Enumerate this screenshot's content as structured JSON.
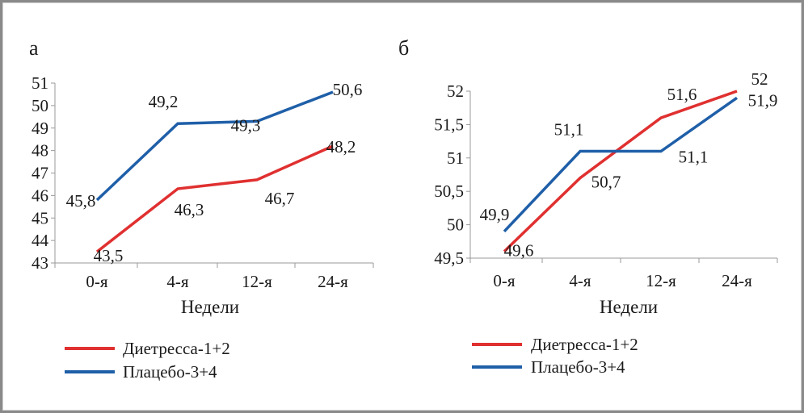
{
  "chart_data": [
    {
      "type": "line",
      "panel_label": "а",
      "xlabel": "Недели",
      "categories": [
        "0-я",
        "4-я",
        "12-я",
        "24-я"
      ],
      "yticks": [
        "43",
        "44",
        "45",
        "46",
        "47",
        "48",
        "49",
        "50",
        "51"
      ],
      "ylim": [
        43,
        51
      ],
      "grid": false,
      "legend_position": "bottom-left",
      "series": [
        {
          "name": "Диетресса-1+2",
          "color": "#e03030",
          "values": [
            43.5,
            46.3,
            46.7,
            48.2
          ],
          "labels": [
            "43,5",
            "46,3",
            "46,7",
            "48,2"
          ]
        },
        {
          "name": "Плацебо-3+4",
          "color": "#1f5fa8",
          "values": [
            45.8,
            49.2,
            49.3,
            50.6
          ],
          "labels": [
            "45,8",
            "49,2",
            "49,3",
            "50,6"
          ]
        }
      ]
    },
    {
      "type": "line",
      "panel_label": "б",
      "xlabel": "Недели",
      "categories": [
        "0-я",
        "4-я",
        "12-я",
        "24-я"
      ],
      "yticks": [
        "49,5",
        "50",
        "50,5",
        "51",
        "51,5",
        "52"
      ],
      "ylim": [
        49.5,
        52
      ],
      "grid": false,
      "legend_position": "bottom-left",
      "series": [
        {
          "name": "Диетресса-1+2",
          "color": "#e03030",
          "values": [
            49.6,
            50.7,
            51.6,
            52
          ],
          "labels": [
            "49,6",
            "50,7",
            "51,6",
            "52"
          ]
        },
        {
          "name": "Плацебо-3+4",
          "color": "#1f5fa8",
          "values": [
            49.9,
            51.1,
            51.1,
            51.9
          ],
          "labels": [
            "49,9",
            "51,1",
            "51,1",
            "51,9"
          ]
        }
      ]
    }
  ]
}
